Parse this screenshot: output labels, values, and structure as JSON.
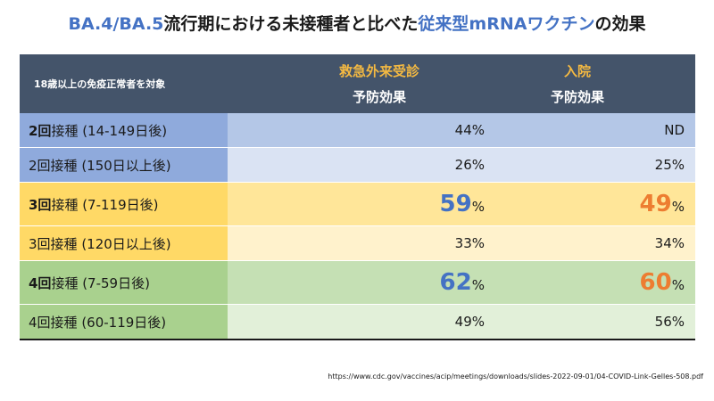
{
  "title": {
    "part1": "BA.4/BA.5",
    "part2": "流行期における未接種者と比べた",
    "part3": "従来型mRNAワクチン",
    "part4": "の効果"
  },
  "table": {
    "header": {
      "target": "18歳以上の免疫正常者を対象",
      "er_line1": "救急外来受診",
      "er_line2": "予防効果",
      "hosp_line1": "入院",
      "hosp_line2": "予防効果"
    },
    "rows": [
      {
        "dose": "2回",
        "label_rest": "接種 (14-149日後)",
        "er": "44%",
        "hosp": "ND"
      },
      {
        "dose": "2回",
        "label_rest": "接種 (150日以上後)",
        "er": "26%",
        "hosp": "25%"
      },
      {
        "dose": "3回",
        "label_rest": "接種 (7-119日後)",
        "er": "59",
        "hosp": "49",
        "pct": "%"
      },
      {
        "dose": "3回",
        "label_rest": "接種 (120日以上後)",
        "er": "33%",
        "hosp": "34%"
      },
      {
        "dose": "4回",
        "label_rest": "接種 (7-59日後)",
        "er": "62",
        "hosp": "60",
        "pct": "%"
      },
      {
        "dose": "4回",
        "label_rest": "接種 (60-119日後)",
        "er": "49%",
        "hosp": "56%"
      }
    ]
  },
  "source": "https://www.cdc.gov/vaccines/acip/meetings/downloads/slides-2022-09-01/04-COVID-Link-Gelles-508.pdf",
  "colors": {
    "title_blue": "#4472c4",
    "header_bg": "#44546a",
    "header_accent": "#f4b942",
    "highlight_blue": "#4472c4",
    "highlight_orange": "#ed7d31"
  }
}
